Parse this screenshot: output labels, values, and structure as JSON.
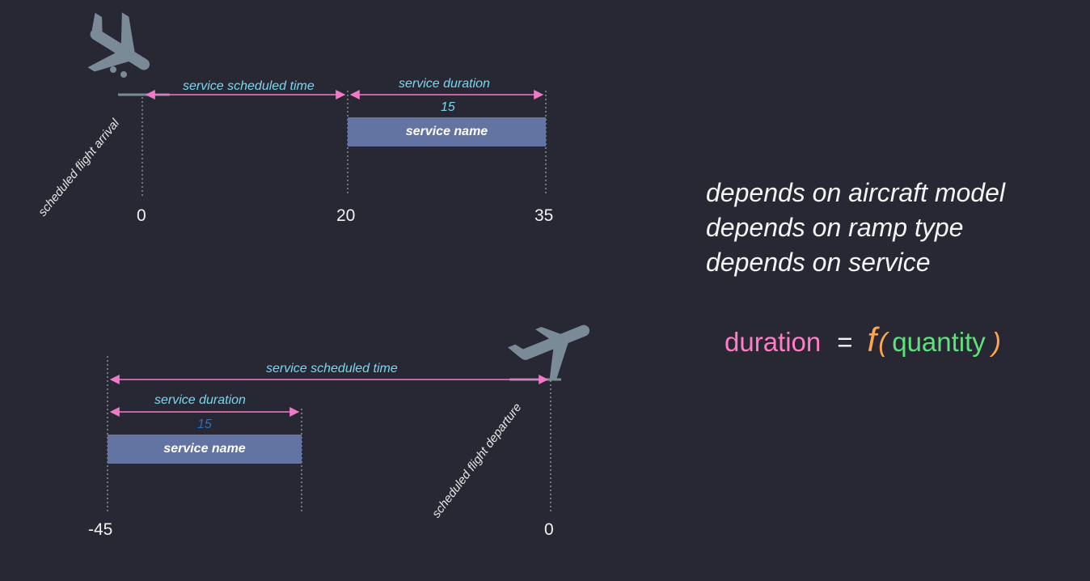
{
  "arrival": {
    "flight_label": "scheduled flight arrival",
    "scheduled_time_label": "service scheduled time",
    "duration_label": "service duration",
    "duration_value": "15",
    "service_name": "service name",
    "ticks": [
      "0",
      "20",
      "35"
    ]
  },
  "departure": {
    "flight_label": "scheduled flight departure",
    "scheduled_time_label": "service scheduled time",
    "duration_label": "service duration",
    "duration_value": "15",
    "service_name": "service name",
    "ticks": [
      "-45",
      "0"
    ]
  },
  "notes": [
    "depends on aircraft model",
    "depends on ramp type",
    "depends on service"
  ],
  "formula": {
    "lhs": "duration",
    "eq": "=",
    "func": "f",
    "open": "(",
    "arg": "quantity",
    "close": ")"
  },
  "colors": {
    "background": "#272833",
    "arrow": "#f07ac8",
    "bar": "#6474a2",
    "label_cyan": "#7dd6ee",
    "value_blue_dark": "#2f6fb0",
    "plane": "#7a8a96",
    "formula_lhs": "#ff7cc6",
    "formula_func": "#ffa64d",
    "formula_arg": "#5ee07a"
  }
}
